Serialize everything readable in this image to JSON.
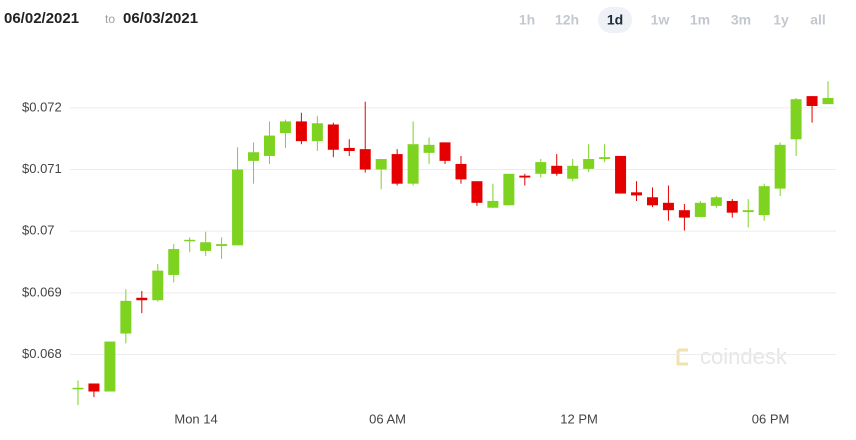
{
  "header": {
    "start_date": "06/02/2021",
    "connector": "to",
    "end_date": "06/03/2021",
    "ranges": [
      "1h",
      "12h",
      "1d",
      "1w",
      "1m",
      "3m",
      "1y",
      "all"
    ],
    "selected_range": 2
  },
  "watermark": "coindesk",
  "chart_data": {
    "type": "candlestick",
    "categories": [
      null,
      null,
      null,
      null,
      null,
      null,
      null,
      "Mon 14",
      null,
      null,
      null,
      null,
      null,
      null,
      null,
      null,
      null,
      null,
      null,
      "06 AM",
      null,
      null,
      null,
      null,
      null,
      null,
      null,
      null,
      null,
      null,
      null,
      "12 PM",
      null,
      null,
      null,
      null,
      null,
      null,
      null,
      null,
      null,
      null,
      null,
      "06 PM",
      null,
      null,
      null,
      null
    ],
    "open": [
      0.06744,
      0.06753,
      0.0674,
      0.06834,
      0.06892,
      0.06888,
      0.06929,
      0.06984,
      0.06968,
      0.06976,
      0.06977,
      0.07114,
      0.07122,
      0.07159,
      0.07178,
      0.07146,
      0.07173,
      0.07135,
      0.07133,
      0.071,
      0.07125,
      0.07077,
      0.07127,
      0.07144,
      0.07109,
      0.07081,
      0.07038,
      0.07042,
      0.0709,
      0.07093,
      0.07106,
      0.07085,
      0.07101,
      0.07117,
      0.07122,
      0.07063,
      0.07055,
      0.07046,
      0.07034,
      0.07023,
      0.07041,
      0.07049,
      0.07031,
      0.07026,
      0.07069,
      0.07149,
      0.07219,
      0.07206
    ],
    "high": [
      0.06758,
      0.06753,
      0.06821,
      0.06906,
      0.06903,
      0.06947,
      0.06979,
      0.0699,
      0.06999,
      0.0699,
      0.07136,
      0.07144,
      0.07178,
      0.07181,
      0.07192,
      0.07187,
      0.07176,
      0.07149,
      0.0721,
      0.07117,
      0.07133,
      0.07178,
      0.07152,
      0.07144,
      0.07122,
      0.07081,
      0.07077,
      0.07093,
      0.07093,
      0.07117,
      0.07125,
      0.07117,
      0.07141,
      0.07141,
      0.07122,
      0.07081,
      0.07071,
      0.07074,
      0.07044,
      0.07049,
      0.07057,
      0.07052,
      0.07052,
      0.07077,
      0.07144,
      0.07216,
      0.07219,
      0.07243
    ],
    "low": [
      0.06718,
      0.06731,
      0.0674,
      0.06818,
      0.06867,
      0.06886,
      0.06917,
      0.06966,
      0.0696,
      0.06955,
      0.06977,
      0.07077,
      0.07109,
      0.07135,
      0.07141,
      0.0713,
      0.0712,
      0.07122,
      0.07095,
      0.07068,
      0.07074,
      0.07074,
      0.07109,
      0.07109,
      0.07077,
      0.07041,
      0.07038,
      0.07042,
      0.07074,
      0.07087,
      0.0709,
      0.07081,
      0.07096,
      0.07112,
      0.07061,
      0.07049,
      0.07039,
      0.07017,
      0.07001,
      0.07023,
      0.07038,
      0.07022,
      0.07006,
      0.07017,
      0.07057,
      0.07122,
      0.07176,
      0.07206
    ],
    "close": [
      0.06746,
      0.0674,
      0.06821,
      0.06887,
      0.06888,
      0.06936,
      0.06971,
      0.06986,
      0.06982,
      0.06979,
      0.071,
      0.07128,
      0.07155,
      0.07178,
      0.07146,
      0.07175,
      0.07132,
      0.0713,
      0.071,
      0.07117,
      0.07077,
      0.07141,
      0.0714,
      0.07114,
      0.07084,
      0.07046,
      0.07049,
      0.07093,
      0.07087,
      0.07112,
      0.07093,
      0.07106,
      0.07117,
      0.0712,
      0.07061,
      0.07058,
      0.07042,
      0.07034,
      0.07022,
      0.07046,
      0.07055,
      0.0703,
      0.07034,
      0.07073,
      0.0714,
      0.07214,
      0.07203,
      0.07216
    ],
    "up_color": "#7ed321",
    "down_color": "#e50000",
    "ylim": [
      0.0671,
      0.0731
    ],
    "yticks": [
      {
        "value": 0.068,
        "label": "$0.068"
      },
      {
        "value": 0.069,
        "label": "$0.069"
      },
      {
        "value": 0.07,
        "label": "$0.07"
      },
      {
        "value": 0.071,
        "label": "$0.071"
      },
      {
        "value": 0.072,
        "label": "$0.072"
      }
    ],
    "grid": true
  }
}
